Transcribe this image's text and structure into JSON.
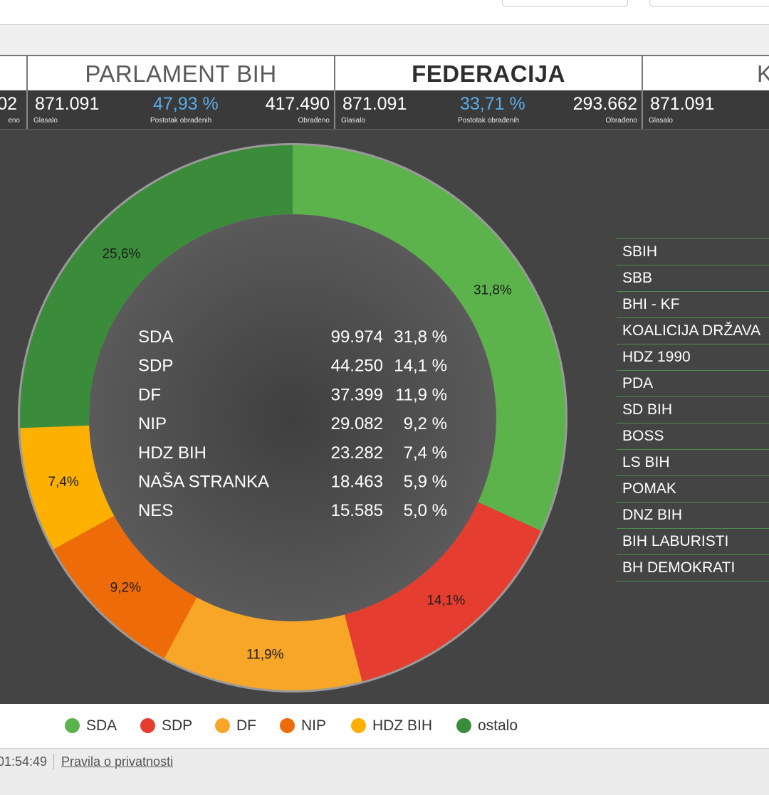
{
  "tabs": [
    {
      "label": ""
    },
    {
      "label": "PARLAMENT BIH"
    },
    {
      "label": "FEDERACIJA"
    },
    {
      "label": "K"
    }
  ],
  "stats": [
    {
      "glasalo": "02",
      "postotak": "",
      "obradjeno": "",
      "lbl_glasalo": "",
      "lbl_postotak": "",
      "lbl_obradjeno": "eno"
    },
    {
      "glasalo": "871.091",
      "postotak": "47,93 %",
      "obradjeno": "417.490",
      "lbl_glasalo": "Glasalo",
      "lbl_postotak": "Postotak obrađenih",
      "lbl_obradjeno": "Obrađeno"
    },
    {
      "glasalo": "871.091",
      "postotak": "33,71 %",
      "obradjeno": "293.662",
      "lbl_glasalo": "Glasalo",
      "lbl_postotak": "Postotak obrađenih",
      "lbl_obradjeno": "Obrađeno"
    },
    {
      "glasalo": "871.091",
      "postotak": "",
      "obradjeno": "",
      "lbl_glasalo": "Glasalo",
      "lbl_postotak": "",
      "lbl_obradjeno": ""
    }
  ],
  "chart_data": {
    "type": "pie",
    "categories": [
      "SDA",
      "SDP",
      "DF",
      "NIP",
      "HDZ BIH",
      "ostalo"
    ],
    "values": [
      31.8,
      14.1,
      11.9,
      9.2,
      7.4,
      25.6
    ],
    "slice_labels": [
      "31,8%",
      "14,1%",
      "11,9%",
      "9,2%",
      "7,4%",
      "25,6%"
    ],
    "colors": [
      "#5cb34b",
      "#e53d2f",
      "#f7a628",
      "#ee6b09",
      "#fdb000",
      "#3a8c3a"
    ],
    "table": [
      {
        "party": "SDA",
        "votes": "99.974",
        "percent": "31,8 %"
      },
      {
        "party": "SDP",
        "votes": "44.250",
        "percent": "14,1 %"
      },
      {
        "party": "DF",
        "votes": "37.399",
        "percent": "11,9 %"
      },
      {
        "party": "NIP",
        "votes": "29.082",
        "percent": "9,2 %"
      },
      {
        "party": "HDZ BIH",
        "votes": "23.282",
        "percent": "7,4 %"
      },
      {
        "party": "NAŠA STRANKA",
        "votes": "18.463",
        "percent": "5,9 %"
      },
      {
        "party": "NES",
        "votes": "15.585",
        "percent": "5,0 %"
      }
    ],
    "legend": {
      "position": "bottom"
    }
  },
  "party_list": [
    "SBIH",
    "SBB",
    "BHI - KF",
    "KOALICIJA DRŽAVA",
    "HDZ 1990",
    "PDA",
    "SD BIH",
    "BOSS",
    "LS BIH",
    "POMAK",
    "DNZ BIH",
    "BIH LABURISTI",
    "BH DEMOKRATI"
  ],
  "footer": {
    "time": "01:54:49",
    "privacy_link": "Pravila o privatnosti"
  }
}
